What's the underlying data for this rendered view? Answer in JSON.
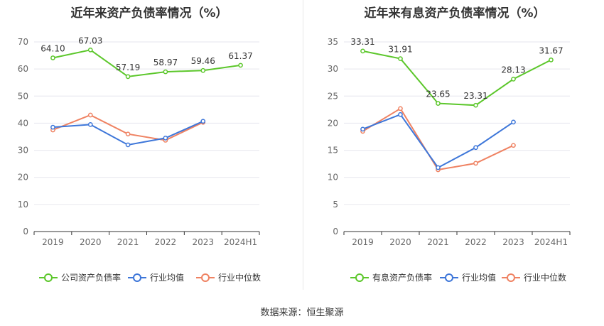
{
  "chart_data": [
    {
      "type": "line",
      "title": "近年来资产负债率情况（%）",
      "categories": [
        "2019",
        "2020",
        "2021",
        "2022",
        "2023",
        "2024H1"
      ],
      "ylim": [
        0,
        70
      ],
      "yticks": [
        0,
        10,
        20,
        30,
        40,
        50,
        60,
        70
      ],
      "grid": true,
      "legend_position": "bottom",
      "series": [
        {
          "name": "公司资产负债率",
          "color": "#5cc72b",
          "values": [
            64.1,
            67.03,
            57.19,
            58.97,
            59.46,
            61.37
          ],
          "labels": [
            "64.10",
            "67.03",
            "57.19",
            "58.97",
            "59.46",
            "61.37"
          ]
        },
        {
          "name": "行业均值",
          "color": "#3d76d9",
          "values": [
            38.5,
            39.5,
            32.0,
            34.5,
            40.7,
            null
          ]
        },
        {
          "name": "行业中位数",
          "color": "#ef8262",
          "values": [
            37.5,
            43.0,
            36.0,
            33.7,
            40.3,
            null
          ]
        }
      ]
    },
    {
      "type": "line",
      "title": "近年来有息资产负债率情况（%）",
      "categories": [
        "2019",
        "2020",
        "2021",
        "2022",
        "2023",
        "2024H1"
      ],
      "ylim": [
        0,
        35
      ],
      "yticks": [
        0,
        5,
        10,
        15,
        20,
        25,
        30,
        35
      ],
      "grid": true,
      "legend_position": "bottom",
      "series": [
        {
          "name": "有息资产负债率",
          "color": "#5cc72b",
          "values": [
            33.31,
            31.91,
            23.65,
            23.31,
            28.13,
            31.67
          ],
          "labels": [
            "33.31",
            "31.91",
            "23.65",
            "23.31",
            "28.13",
            "31.67"
          ]
        },
        {
          "name": "行业均值",
          "color": "#3d76d9",
          "values": [
            18.9,
            21.6,
            11.8,
            15.5,
            20.2,
            null
          ]
        },
        {
          "name": "行业中位数",
          "color": "#ef8262",
          "values": [
            18.5,
            22.7,
            11.4,
            12.6,
            15.9,
            null
          ]
        }
      ]
    }
  ],
  "source": "数据来源：恒生聚源"
}
